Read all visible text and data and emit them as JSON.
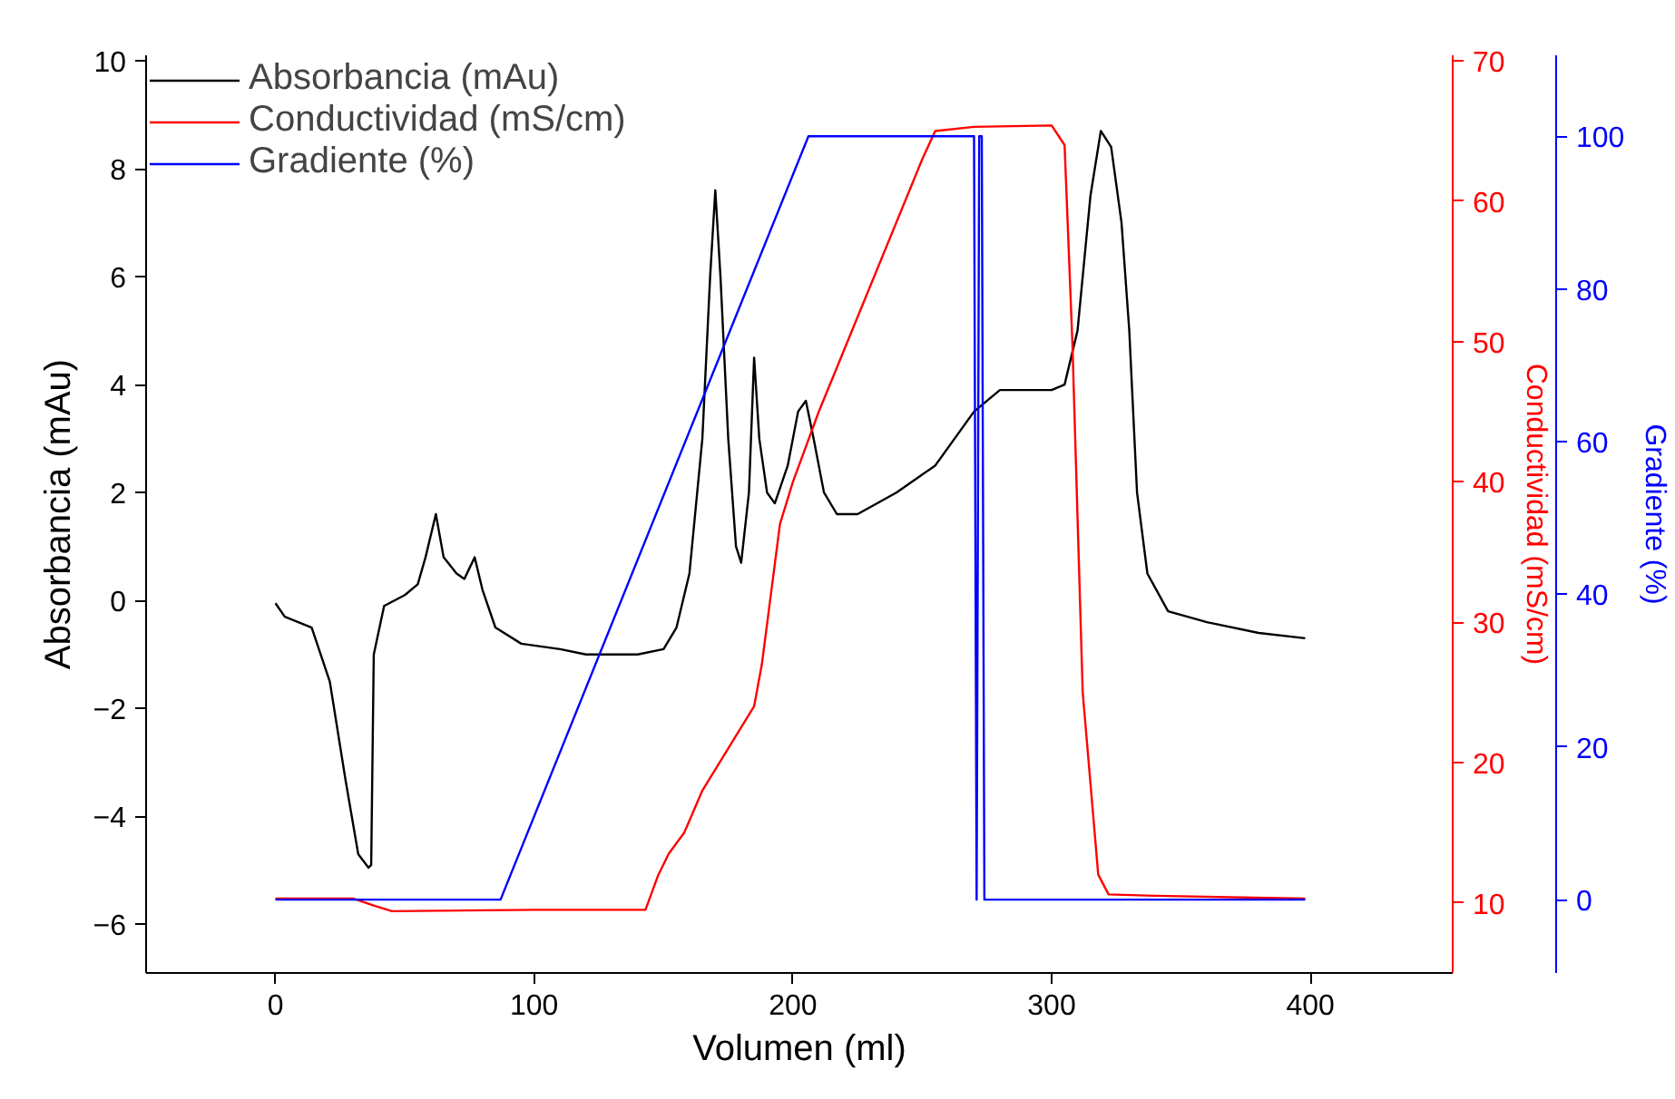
{
  "chart_data": {
    "type": "line",
    "xlabel": "Volumen (ml)",
    "ylabel": "Absorbancia (mAu)",
    "y2label": "Conductividad (mS/cm)",
    "y3label": "Gradiente (%)",
    "xlim": [
      -50,
      455
    ],
    "xticks": [
      0,
      100,
      200,
      300,
      400
    ],
    "ylim": [
      -6.9,
      10.1
    ],
    "yticks": [
      -6,
      -4,
      -2,
      0,
      2,
      4,
      6,
      8,
      10
    ],
    "y2lim": [
      5,
      70.4
    ],
    "y2ticks": [
      10,
      20,
      30,
      40,
      50,
      60,
      70
    ],
    "y3lim": [
      -9.6,
      110.6
    ],
    "y3ticks": [
      0,
      20,
      40,
      60,
      80,
      100
    ],
    "legend": "top left",
    "grid": false,
    "line_style": "solid",
    "series": [
      {
        "name": "Absorbancia (mAu)",
        "color": "#000000",
        "x": [
          0,
          3.6,
          14,
          21,
          27,
          32,
          36,
          37,
          38,
          42,
          50,
          55,
          58,
          62,
          65,
          70,
          73,
          77,
          80,
          85,
          95,
          110,
          120,
          140,
          150,
          155,
          160,
          165,
          168,
          170,
          172,
          175,
          178,
          180,
          183,
          185,
          187,
          190,
          193,
          198,
          202,
          205,
          208,
          212,
          217,
          225,
          240,
          255,
          270,
          280,
          290,
          300,
          305,
          310,
          315,
          319,
          323,
          327,
          330,
          333,
          337,
          345,
          360,
          380,
          398
        ],
        "values": [
          -0.05,
          -0.3,
          -0.5,
          -1.5,
          -3.3,
          -4.7,
          -4.95,
          -4.9,
          -1.0,
          -0.1,
          0.1,
          0.3,
          0.8,
          1.6,
          0.8,
          0.5,
          0.4,
          0.8,
          0.2,
          -0.5,
          -0.8,
          -0.9,
          -1.0,
          -1.0,
          -0.9,
          -0.5,
          0.5,
          3,
          6,
          7.6,
          6,
          3,
          1,
          0.7,
          2,
          4.5,
          3,
          2,
          1.8,
          2.5,
          3.5,
          3.7,
          3,
          2,
          1.6,
          1.6,
          2.0,
          2.5,
          3.5,
          3.9,
          3.9,
          3.9,
          4.0,
          5,
          7.5,
          8.7,
          8.4,
          7,
          5,
          2,
          0.5,
          -0.2,
          -0.4,
          -0.6,
          -0.7
        ]
      },
      {
        "name": "Conductividad (mS/cm)",
        "color": "#ff0000",
        "axis": "y2",
        "x": [
          0,
          30,
          38,
          45,
          100,
          143,
          148,
          152,
          158,
          165,
          175,
          185,
          188,
          195,
          200,
          210,
          230,
          250,
          255,
          270,
          300,
          305,
          308,
          312,
          318,
          322,
          340,
          398
        ],
        "values": [
          10.3,
          10.3,
          9.8,
          9.4,
          9.5,
          9.5,
          12,
          13.5,
          15,
          18,
          21,
          24,
          27,
          37,
          40,
          45,
          54,
          63,
          65,
          65.3,
          65.4,
          64,
          50,
          25,
          12,
          10.6,
          10.5,
          10.3
        ]
      },
      {
        "name": "Gradiente (%)",
        "color": "#0000ff",
        "axis": "y3",
        "x": [
          0,
          87,
          206,
          270,
          271,
          272,
          273,
          274,
          398
        ],
        "values": [
          0,
          0,
          100,
          100,
          0,
          100,
          100,
          0,
          0
        ]
      }
    ]
  }
}
